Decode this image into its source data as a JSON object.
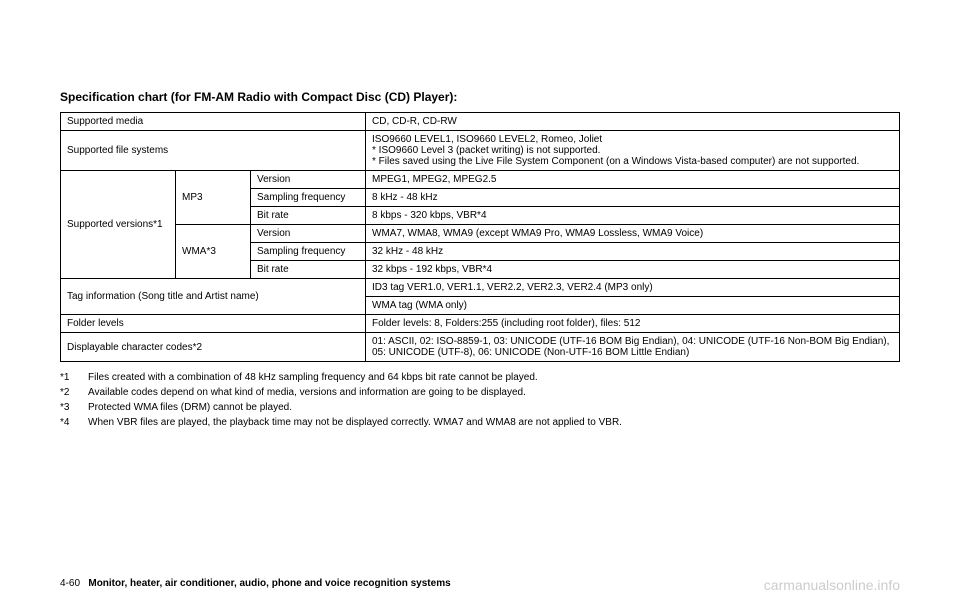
{
  "title": "Specification chart (for FM-AM Radio with Compact Disc (CD) Player):",
  "rows": {
    "supported_media": {
      "label": "Supported media",
      "value": "CD, CD-R, CD-RW"
    },
    "supported_filesystems": {
      "label": "Supported file systems",
      "value": "ISO9660 LEVEL1, ISO9660 LEVEL2, Romeo, Joliet\n* ISO9660 Level 3 (packet writing) is not supported.\n* Files saved using the Live File System Component (on a Windows Vista-based computer) are not supported."
    },
    "supported_versions": {
      "label": "Supported versions*1",
      "mp3": {
        "label": "MP3",
        "version": {
          "label": "Version",
          "value": "MPEG1, MPEG2, MPEG2.5"
        },
        "sampling": {
          "label": "Sampling frequency",
          "value": "8 kHz - 48 kHz"
        },
        "bitrate": {
          "label": "Bit rate",
          "value": "8 kbps - 320 kbps, VBR*4"
        }
      },
      "wma": {
        "label": "WMA*3",
        "version": {
          "label": "Version",
          "value": "WMA7, WMA8, WMA9 (except WMA9 Pro, WMA9 Lossless, WMA9 Voice)"
        },
        "sampling": {
          "label": "Sampling frequency",
          "value": "32 kHz - 48 kHz"
        },
        "bitrate": {
          "label": "Bit rate",
          "value": "32 kbps - 192 kbps, VBR*4"
        }
      }
    },
    "tag_info": {
      "label": "Tag information (Song title and Artist name)",
      "value1": "ID3 tag VER1.0, VER1.1, VER2.2, VER2.3, VER2.4 (MP3 only)",
      "value2": "WMA tag (WMA only)"
    },
    "folder_levels": {
      "label": "Folder levels",
      "value": "Folder levels: 8, Folders:255 (including root folder), files: 512"
    },
    "char_codes": {
      "label": "Displayable character codes*2",
      "value": "01: ASCII, 02: ISO-8859-1, 03: UNICODE (UTF-16 BOM Big Endian), 04: UNICODE (UTF-16 Non-BOM Big Endian), 05: UNICODE (UTF-8), 06: UNICODE (Non-UTF-16 BOM Little Endian)"
    }
  },
  "footnotes": {
    "f1": {
      "marker": "*1",
      "text": "Files created with a combination of 48 kHz sampling frequency and 64 kbps bit rate cannot be played."
    },
    "f2": {
      "marker": "*2",
      "text": "Available codes depend on what kind of media, versions and information are going to be displayed."
    },
    "f3": {
      "marker": "*3",
      "text": "Protected WMA files (DRM) cannot be played."
    },
    "f4": {
      "marker": "*4",
      "text": "When VBR files are played, the playback time may not be displayed correctly. WMA7 and WMA8 are not applied to VBR."
    }
  },
  "footer": {
    "page": "4-60",
    "section": "Monitor, heater, air conditioner, audio, phone and voice recognition systems"
  },
  "watermark": "carmanualsonline.info"
}
